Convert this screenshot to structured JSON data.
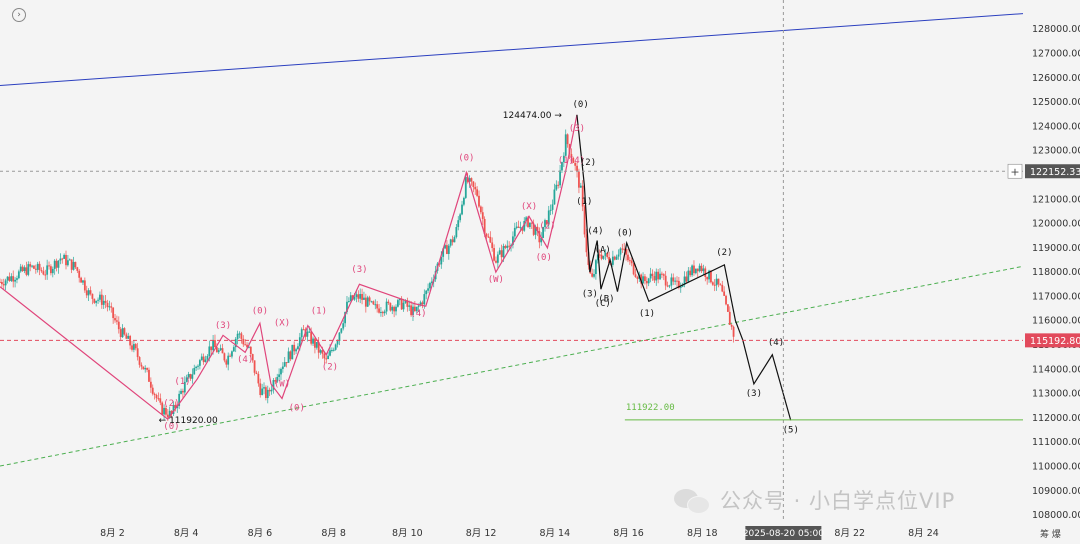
{
  "toolbar": {
    "settings_icon": "settings-circle-icon",
    "crosshair_symbol": "+",
    "right_bottom_label": "筹 爆"
  },
  "watermark": {
    "icon": "wechat-icon",
    "text": "公众号 · 小白学点位VIP"
  },
  "colors": {
    "up": "#26a69a",
    "down": "#ef5350",
    "wave_pink": "#e0457b",
    "wave_black": "#111111",
    "trend_blue": "#2b3fbf",
    "trend_green": "#4caf50",
    "target_green": "#66bb44",
    "price_tag": "#e24a5c",
    "crosshair_tag": "#555555"
  },
  "chart_data": {
    "type": "candlestick",
    "ylim": [
      107800,
      129200
    ],
    "xlim": [
      0,
      1.0
    ],
    "y_ticks": [
      108000,
      109000,
      110000,
      111000,
      112000,
      113000,
      114000,
      115000,
      116000,
      117000,
      118000,
      119000,
      120000,
      121000,
      122000,
      123000,
      124000,
      125000,
      126000,
      127000,
      128000
    ],
    "x_ticks": [
      {
        "label": "8月 2",
        "day": 2
      },
      {
        "label": "8月 4",
        "day": 4
      },
      {
        "label": "8月 6",
        "day": 6
      },
      {
        "label": "8月 8",
        "day": 8
      },
      {
        "label": "8月 10",
        "day": 10
      },
      {
        "label": "8月 12",
        "day": 12
      },
      {
        "label": "8月 14",
        "day": 14
      },
      {
        "label": "8月 16",
        "day": 16
      },
      {
        "label": "8月 18",
        "day": 18
      },
      {
        "label": "8月 22",
        "day": 22
      },
      {
        "label": "8月 24",
        "day": 24
      }
    ],
    "x_range_days": [
      -1.05,
      26.7
    ],
    "crosshair": {
      "day": 20.2,
      "price": 122152.33,
      "price_label": "122152.33",
      "time_label": "2025-08-20 05:00"
    },
    "current_price": {
      "value": 115192.8,
      "label": "115192.80"
    },
    "price_annotations": [
      {
        "text": "124474.00",
        "day": 14.3,
        "price": 124474
      },
      {
        "text": "111920.00",
        "day": 3.2,
        "price": 111920
      }
    ],
    "target_line": {
      "label": "111922.00",
      "price": 111922,
      "day_start": 15.9,
      "day_end": 26.7
    },
    "trendlines": [
      {
        "name": "blue",
        "points": [
          [
            -1.05,
            125680
          ],
          [
            26.7,
            128640
          ]
        ]
      },
      {
        "name": "green-dashed",
        "points": [
          [
            -1.05,
            110020
          ],
          [
            26.7,
            118240
          ]
        ]
      }
    ],
    "candles_path": [
      [
        -1.05,
        117600
      ],
      [
        -0.6,
        117900
      ],
      [
        -0.2,
        118200
      ],
      [
        0.2,
        118000
      ],
      [
        0.6,
        118600
      ],
      [
        1.0,
        118200
      ],
      [
        1.4,
        117000
      ],
      [
        1.8,
        116800
      ],
      [
        2.2,
        115600
      ],
      [
        2.6,
        114800
      ],
      [
        3.0,
        113600
      ],
      [
        3.3,
        112400
      ],
      [
        3.6,
        112100
      ],
      [
        3.9,
        113200
      ],
      [
        4.3,
        114200
      ],
      [
        4.7,
        115000
      ],
      [
        5.1,
        114400
      ],
      [
        5.4,
        115500
      ],
      [
        5.7,
        114800
      ],
      [
        6.0,
        113200
      ],
      [
        6.2,
        112900
      ],
      [
        6.5,
        114000
      ],
      [
        6.9,
        114800
      ],
      [
        7.2,
        115600
      ],
      [
        7.5,
        115000
      ],
      [
        7.8,
        114300
      ],
      [
        8.1,
        115300
      ],
      [
        8.4,
        116800
      ],
      [
        8.7,
        117000
      ],
      [
        9.1,
        116500
      ],
      [
        9.5,
        116600
      ],
      [
        9.9,
        116700
      ],
      [
        10.2,
        116300
      ],
      [
        10.5,
        117100
      ],
      [
        10.9,
        118600
      ],
      [
        11.3,
        119500
      ],
      [
        11.6,
        121800
      ],
      [
        11.9,
        121200
      ],
      [
        12.1,
        119800
      ],
      [
        12.4,
        118500
      ],
      [
        12.7,
        119100
      ],
      [
        13.0,
        119800
      ],
      [
        13.3,
        120100
      ],
      [
        13.6,
        119300
      ],
      [
        13.9,
        120700
      ],
      [
        14.1,
        121800
      ],
      [
        14.3,
        123500
      ],
      [
        14.5,
        122600
      ],
      [
        14.7,
        121400
      ],
      [
        14.9,
        118300
      ],
      [
        15.0,
        117600
      ],
      [
        15.2,
        118800
      ],
      [
        15.5,
        118500
      ],
      [
        15.8,
        119000
      ],
      [
        16.1,
        118200
      ],
      [
        16.4,
        117600
      ],
      [
        16.7,
        117900
      ],
      [
        17.0,
        117700
      ],
      [
        17.3,
        117400
      ],
      [
        17.6,
        117900
      ],
      [
        17.9,
        118300
      ],
      [
        18.2,
        117800
      ],
      [
        18.5,
        117300
      ],
      [
        18.7,
        116200
      ],
      [
        18.9,
        115200
      ]
    ],
    "wave_pink_path": [
      [
        -1.05,
        117400
      ],
      [
        3.5,
        111950
      ],
      [
        4.3,
        113600
      ],
      [
        5.0,
        115400
      ],
      [
        5.6,
        114700
      ],
      [
        6.0,
        115900
      ],
      [
        6.3,
        113400
      ],
      [
        6.6,
        112800
      ],
      [
        7.3,
        115800
      ],
      [
        7.8,
        114600
      ],
      [
        8.7,
        117500
      ],
      [
        10.2,
        116700
      ],
      [
        10.5,
        116600
      ],
      [
        11.6,
        122100
      ],
      [
        12.4,
        118000
      ],
      [
        13.3,
        120300
      ],
      [
        13.8,
        119000
      ],
      [
        14.3,
        122200
      ],
      [
        14.6,
        124474
      ]
    ],
    "wave_black_path": [
      [
        14.6,
        124474
      ],
      [
        14.8,
        121600
      ],
      [
        14.95,
        118000
      ],
      [
        15.15,
        119300
      ],
      [
        15.25,
        117300
      ],
      [
        15.5,
        118500
      ],
      [
        15.7,
        117200
      ],
      [
        15.95,
        119200
      ],
      [
        16.55,
        116800
      ],
      [
        18.6,
        118300
      ],
      [
        18.9,
        116000
      ],
      [
        19.1,
        115200
      ],
      [
        19.4,
        113400
      ],
      [
        19.9,
        114600
      ],
      [
        20.4,
        111900
      ]
    ],
    "wave_labels_pink": [
      {
        "text": "(0)",
        "day": 3.6,
        "price": 111550
      },
      {
        "text": "(1)",
        "day": 3.9,
        "price": 113400
      },
      {
        "text": "(2)",
        "day": 3.6,
        "price": 112500
      },
      {
        "text": "(3)",
        "day": 5.0,
        "price": 115700
      },
      {
        "text": "(4)",
        "day": 5.6,
        "price": 114300
      },
      {
        "text": "(0)",
        "day": 6.0,
        "price": 116300
      },
      {
        "text": "(X)",
        "day": 6.6,
        "price": 115800
      },
      {
        "text": "(W)",
        "day": 6.6,
        "price": 113300
      },
      {
        "text": "(0)",
        "day": 7.0,
        "price": 112300
      },
      {
        "text": "(1)",
        "day": 7.6,
        "price": 116300
      },
      {
        "text": "(2)",
        "day": 7.9,
        "price": 114000
      },
      {
        "text": "(3)",
        "day": 8.7,
        "price": 118000
      },
      {
        "text": "(4)",
        "day": 10.3,
        "price": 116200
      },
      {
        "text": "(0)",
        "day": 11.6,
        "price": 122600
      },
      {
        "text": "(W)",
        "day": 12.4,
        "price": 117600
      },
      {
        "text": "(X)",
        "day": 13.3,
        "price": 120600
      },
      {
        "text": "(2)",
        "day": 13.8,
        "price": 119800
      },
      {
        "text": "(0)",
        "day": 13.7,
        "price": 118500
      },
      {
        "text": "(1)",
        "day": 14.3,
        "price": 122500
      },
      {
        "text": "(3)",
        "day": 14.6,
        "price": 123800
      },
      {
        "text": "(4)",
        "day": 14.6,
        "price": 122500
      }
    ],
    "wave_labels_black": [
      {
        "text": "(0)",
        "day": 14.7,
        "price": 124800
      },
      {
        "text": "(2)",
        "day": 14.9,
        "price": 122400
      },
      {
        "text": "(1)",
        "day": 14.8,
        "price": 120800
      },
      {
        "text": "(4)",
        "day": 15.1,
        "price": 119600
      },
      {
        "text": "(A)",
        "day": 15.3,
        "price": 118800
      },
      {
        "text": "(0)",
        "day": 15.9,
        "price": 119500
      },
      {
        "text": "(3)",
        "day": 14.95,
        "price": 117000
      },
      {
        "text": "(B)",
        "day": 15.4,
        "price": 116800
      },
      {
        "text": "(C)",
        "day": 15.3,
        "price": 116600
      },
      {
        "text": "(1)",
        "day": 16.5,
        "price": 116200
      },
      {
        "text": "(2)",
        "day": 18.6,
        "price": 118700
      },
      {
        "text": "(4)",
        "day": 20.0,
        "price": 115000
      },
      {
        "text": "(3)",
        "day": 19.4,
        "price": 112900
      },
      {
        "text": "(5)",
        "day": 20.4,
        "price": 111400
      }
    ]
  }
}
